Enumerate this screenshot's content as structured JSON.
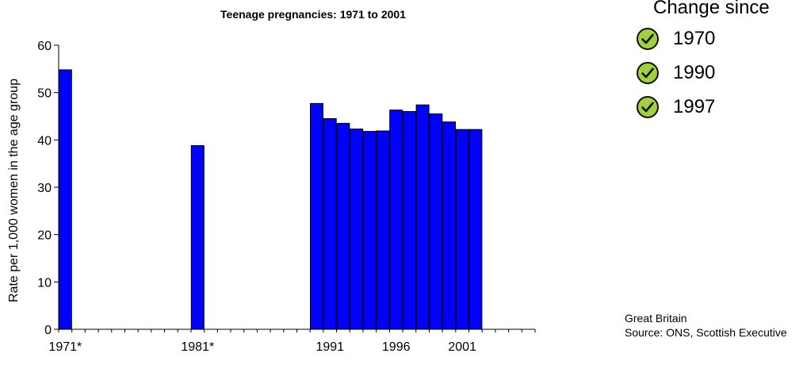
{
  "chart_data": {
    "type": "bar",
    "title": "Teenage pregnancies: 1971 to 2001",
    "ylabel": "Rate per 1,000 women in the age group",
    "xlabel": "",
    "ylim": [
      0,
      60
    ],
    "yticks": [
      0,
      10,
      20,
      30,
      40,
      50,
      60
    ],
    "x_range": [
      1971,
      2001
    ],
    "x_tick_labels": [
      {
        "year": 1971,
        "label": "1971*"
      },
      {
        "year": 1981,
        "label": "1981*"
      },
      {
        "year": 1991,
        "label": "1991"
      },
      {
        "year": 1996,
        "label": "1996"
      },
      {
        "year": 2001,
        "label": "2001"
      }
    ],
    "bar_color": "#0000ff",
    "grid": false,
    "bars": [
      {
        "year": 1971,
        "value": 54.8
      },
      {
        "year": 1981,
        "value": 38.8
      },
      {
        "year": 1990,
        "value": 47.7
      },
      {
        "year": 1991,
        "value": 44.5
      },
      {
        "year": 1992,
        "value": 43.5
      },
      {
        "year": 1993,
        "value": 42.3
      },
      {
        "year": 1994,
        "value": 41.8
      },
      {
        "year": 1995,
        "value": 41.9
      },
      {
        "year": 1996,
        "value": 46.3
      },
      {
        "year": 1997,
        "value": 46.0
      },
      {
        "year": 1998,
        "value": 47.4
      },
      {
        "year": 1999,
        "value": 45.5
      },
      {
        "year": 2000,
        "value": 43.8
      },
      {
        "year": 2001,
        "value": 42.2
      },
      {
        "year": 2002,
        "value": 42.2
      }
    ]
  },
  "change_since": {
    "title": "Change since",
    "icon": "check-circle-icon",
    "icon_fill": "#a3d13d",
    "items": [
      {
        "label": "1970"
      },
      {
        "label": "1990"
      },
      {
        "label": "1997"
      }
    ]
  },
  "note": {
    "region": "Great Britain",
    "source": "Source: ONS, Scottish Executive"
  }
}
